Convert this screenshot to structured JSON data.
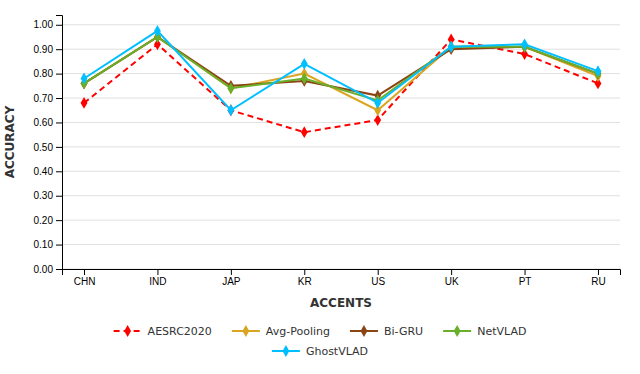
{
  "chart_data": {
    "type": "line",
    "xlabel": "ACCENTS",
    "ylabel": "ACCURACY",
    "categories": [
      "CHN",
      "IND",
      "JAP",
      "KR",
      "US",
      "UK",
      "PT",
      "RU"
    ],
    "series": [
      {
        "name": "AESRC2020",
        "color": "#FF0000",
        "line_style": "dashed",
        "marker": "diamond",
        "values": [
          0.68,
          0.92,
          0.65,
          0.56,
          0.61,
          0.94,
          0.88,
          0.76
        ]
      },
      {
        "name": "Avg-Pooling",
        "color": "#DAA520",
        "line_style": "solid",
        "marker": "diamond",
        "values": [
          0.76,
          0.95,
          0.74,
          0.8,
          0.65,
          0.91,
          0.91,
          0.79
        ]
      },
      {
        "name": "Bi-GRU",
        "color": "#8B4513",
        "line_style": "solid",
        "marker": "diamond",
        "values": [
          0.76,
          0.95,
          0.75,
          0.77,
          0.71,
          0.9,
          0.91,
          0.8
        ]
      },
      {
        "name": "NetVLAD",
        "color": "#6AAF2A",
        "line_style": "solid",
        "marker": "diamond",
        "values": [
          0.76,
          0.95,
          0.74,
          0.78,
          0.69,
          0.91,
          0.91,
          0.8
        ]
      },
      {
        "name": "GhostVLAD",
        "color": "#00BFFF",
        "line_style": "solid",
        "marker": "diamond",
        "values": [
          0.78,
          0.975,
          0.65,
          0.84,
          0.68,
          0.91,
          0.92,
          0.81
        ]
      }
    ],
    "ylim": [
      0.0,
      1.04
    ],
    "yticks": [
      {
        "value": 0.0,
        "label": "0.00"
      },
      {
        "value": 0.1,
        "label": "0.10"
      },
      {
        "value": 0.2,
        "label": "0.20"
      },
      {
        "value": 0.3,
        "label": "0.30"
      },
      {
        "value": 0.4,
        "label": "0.40"
      },
      {
        "value": 0.5,
        "label": "0.50"
      },
      {
        "value": 0.6,
        "label": "0.60"
      },
      {
        "value": 0.7,
        "label": "0.70"
      },
      {
        "value": 0.8,
        "label": "0.80"
      },
      {
        "value": 0.9,
        "label": "0.90"
      },
      {
        "value": 1.0,
        "label": "1.00"
      }
    ],
    "grid": true,
    "legend": "bottom"
  }
}
